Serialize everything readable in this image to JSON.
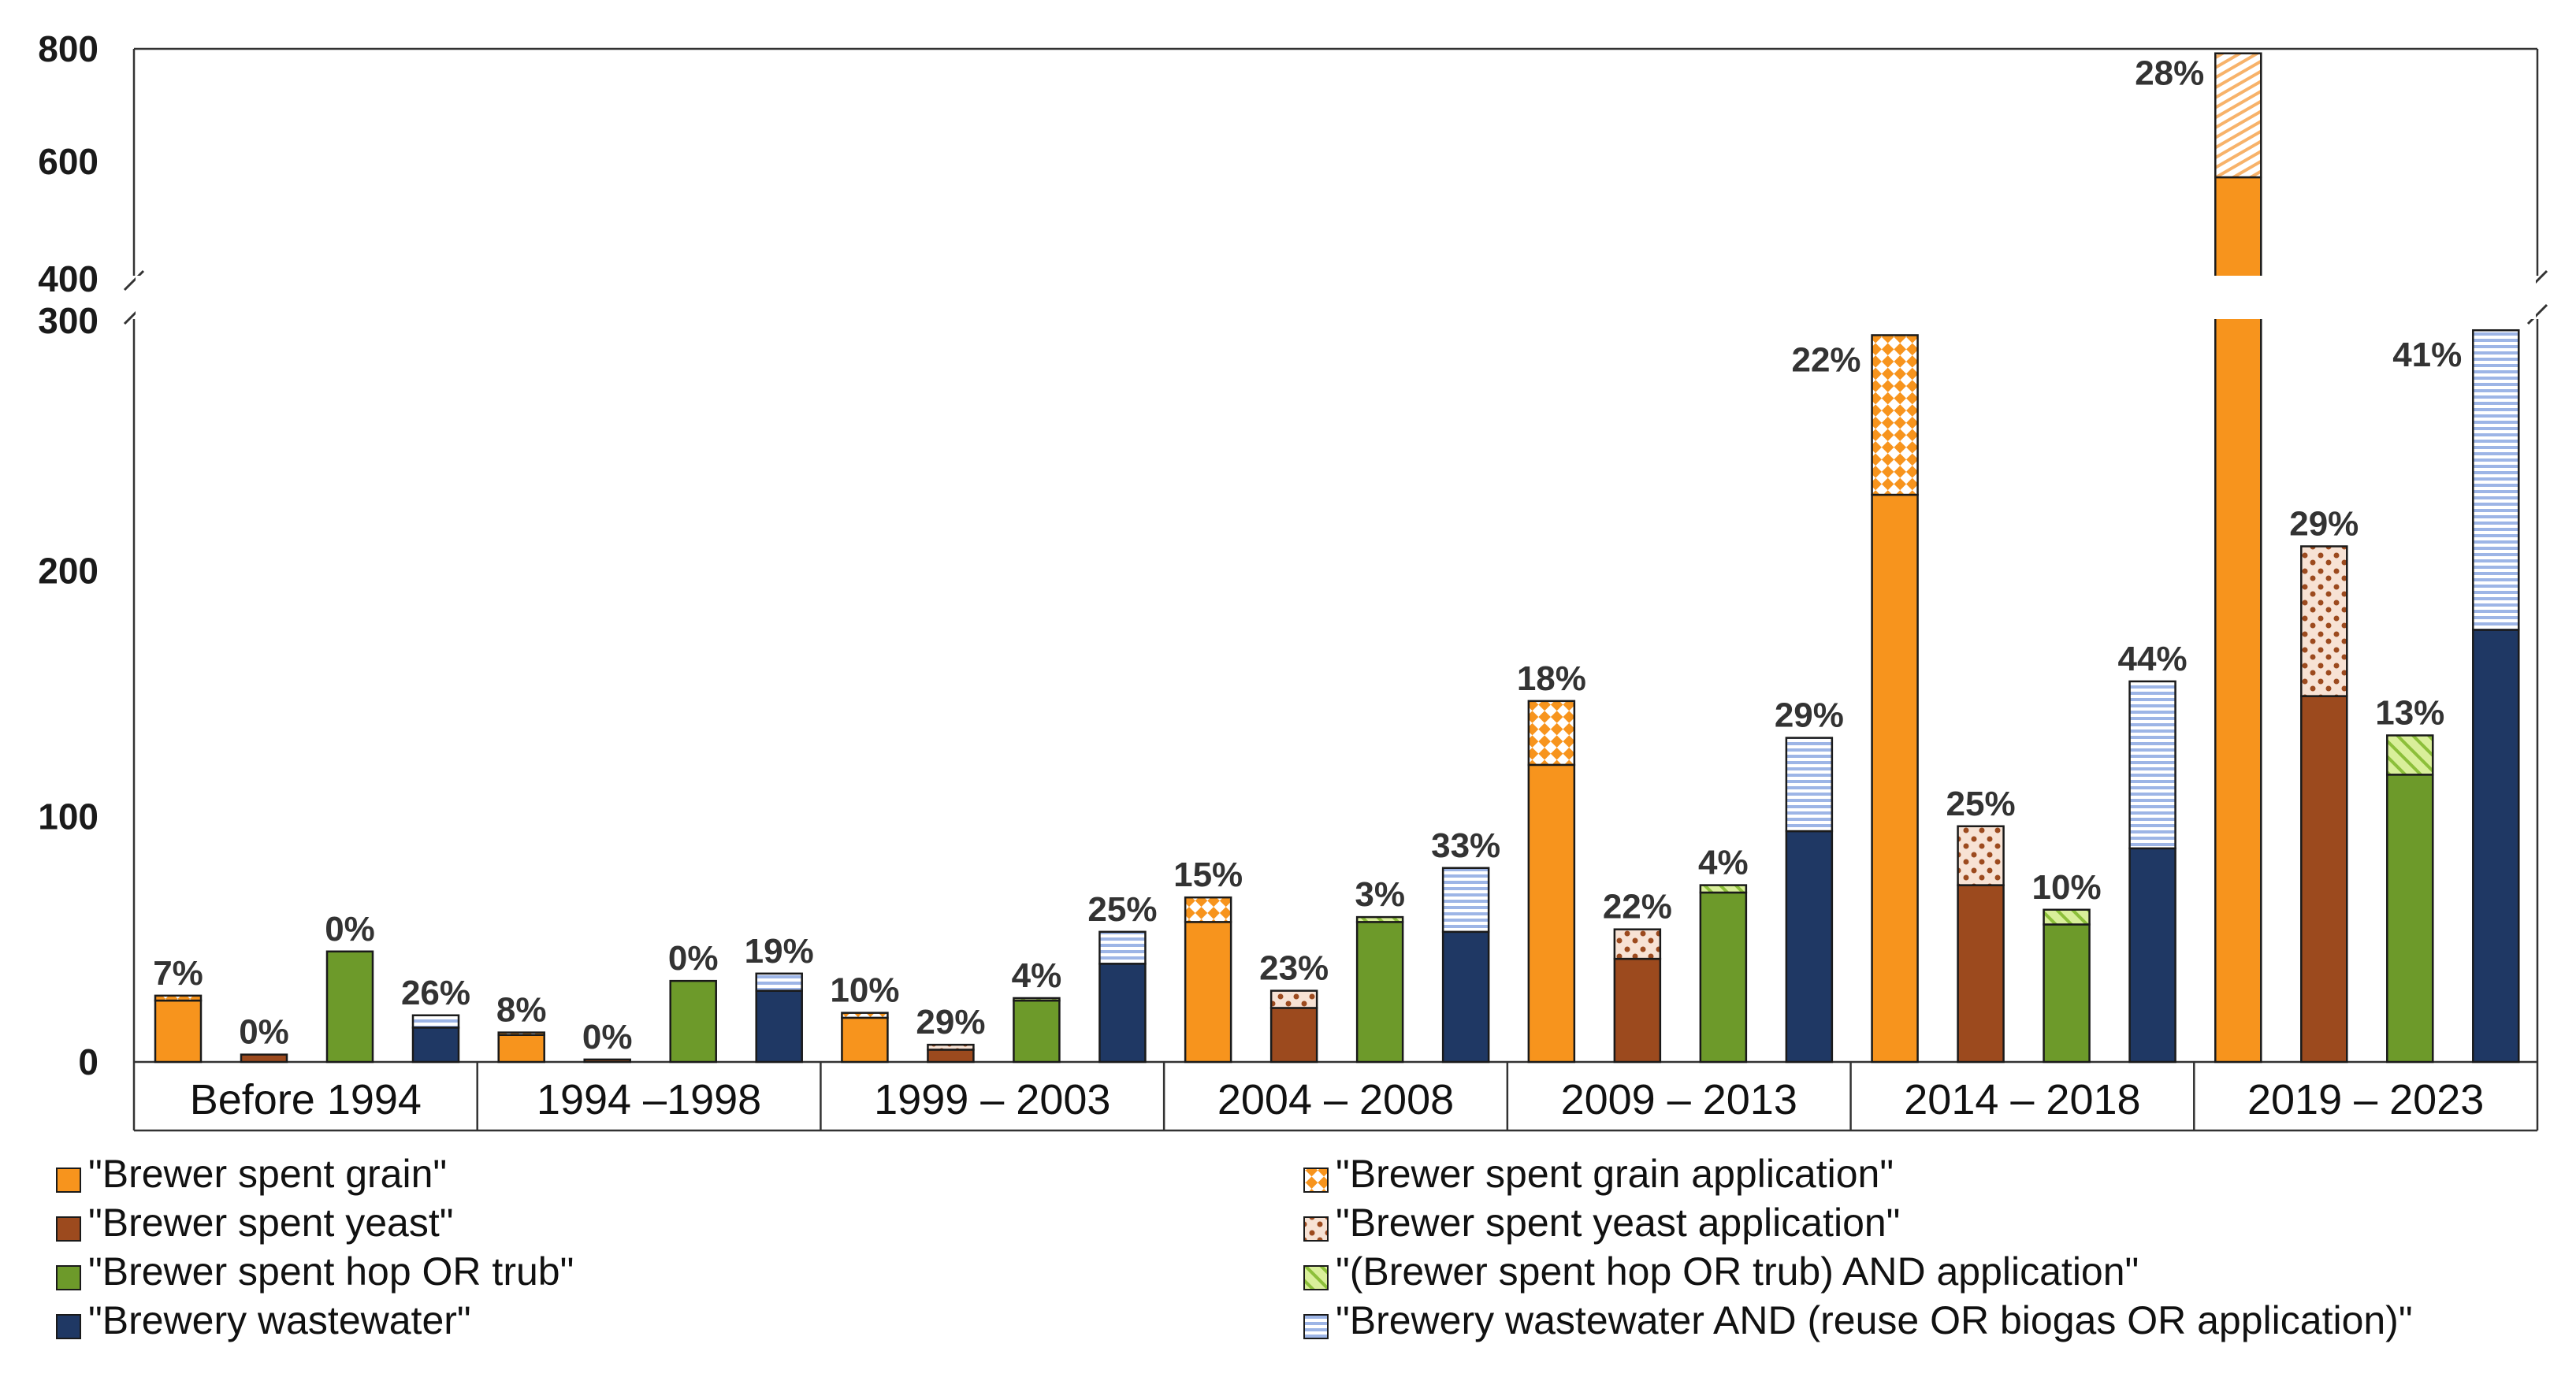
{
  "chart_data": {
    "type": "bar",
    "subtype": "stacked-grouped",
    "y_axis": {
      "ticks": [
        "0",
        "100",
        "200",
        "300",
        "400",
        "600",
        "800"
      ],
      "break_between": [
        300,
        400
      ],
      "lower_range": [
        0,
        300
      ],
      "upper_range": [
        400,
        800
      ]
    },
    "categories": [
      "Before 1994",
      "1994 –1998",
      "1999 – 2003",
      "2004 – 2008",
      "2009 – 2013",
      "2014 – 2018",
      "2019 – 2023"
    ],
    "series": [
      {
        "name": "Brewer spent grain",
        "color": "#f7941d",
        "base_label": "\"Brewer spent grain\"",
        "application_label": "\"Brewer spent grain application\"",
        "pattern": "checker",
        "base": [
          25,
          11,
          18,
          57,
          121,
          231,
          572
        ],
        "application": [
          2,
          1,
          2,
          10,
          26,
          65,
          220
        ],
        "pct": [
          "7%",
          "8%",
          "10%",
          "15%",
          "18%",
          "22%",
          "28%"
        ]
      },
      {
        "name": "Brewer spent yeast",
        "color": "#9c4a1e",
        "base_label": "\"Brewer spent yeast\"",
        "application_label": "\"Brewer spent yeast application\"",
        "pattern": "dots",
        "base": [
          3,
          1,
          5,
          22,
          42,
          72,
          149
        ],
        "application": [
          0,
          0,
          2,
          7,
          12,
          24,
          61
        ],
        "pct": [
          "0%",
          "0%",
          "29%",
          "23%",
          "22%",
          "25%",
          "29%"
        ]
      },
      {
        "name": "Brewer spent hop OR trub",
        "color": "#6d9a2a",
        "base_label": "\"Brewer spent hop OR trub\"",
        "application_label": "\"(Brewer spent hop OR trub) AND application\"",
        "pattern": "diagonal",
        "base": [
          45,
          33,
          25,
          57,
          69,
          56,
          117
        ],
        "application": [
          0,
          0,
          1,
          2,
          3,
          6,
          16
        ],
        "pct": [
          "0%",
          "0%",
          "4%",
          "3%",
          "4%",
          "10%",
          "13%"
        ]
      },
      {
        "name": "Brewery wastewater",
        "color": "#1f3864",
        "base_label": "\"Brewery wastewater\"",
        "application_label": "\"Brewery wastewater AND (reuse OR biogas OR application)\"",
        "pattern": "horizontal-lines",
        "base": [
          14,
          29,
          40,
          53,
          94,
          87,
          176
        ],
        "application": [
          5,
          7,
          13,
          26,
          38,
          68,
          122
        ],
        "pct": [
          "26%",
          "19%",
          "25%",
          "33%",
          "29%",
          "44%",
          "41%"
        ]
      }
    ]
  }
}
